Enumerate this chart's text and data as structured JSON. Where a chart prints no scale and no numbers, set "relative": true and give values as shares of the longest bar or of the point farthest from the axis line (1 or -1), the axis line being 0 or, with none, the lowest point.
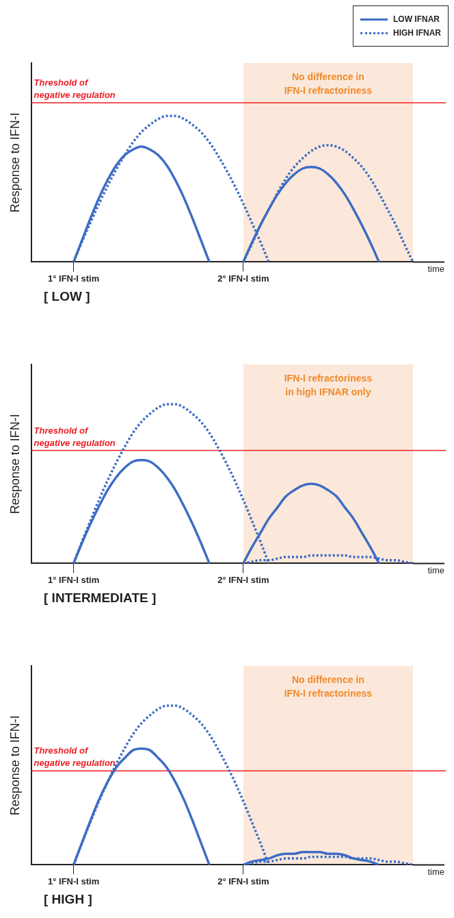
{
  "chart_data": [
    {
      "type": "line",
      "relative": true,
      "ylabel": "Response to IFN-I",
      "xlabel": "time",
      "legend": "top right",
      "categories": [
        null,
        null,
        null,
        null,
        null,
        "1° IFN-I stim",
        null,
        null,
        null,
        null,
        null,
        null,
        null,
        null,
        null,
        null,
        null,
        null,
        null,
        null,
        null,
        null,
        null,
        null,
        null,
        "2° IFN-I stim",
        null,
        null,
        null,
        null,
        null,
        null,
        null,
        null,
        null,
        null,
        null,
        null,
        null,
        null,
        null,
        null,
        null,
        null,
        null,
        null
      ],
      "series": [
        {
          "name": "LOW IFNAR",
          "color": "#3d6cc4",
          "line_style": "solid",
          "values": [
            null,
            null,
            null,
            null,
            null,
            0,
            0.15,
            0.3,
            0.44,
            0.56,
            0.66,
            0.73,
            0.77,
            0.79,
            0.77,
            0.73,
            0.66,
            0.56,
            0.44,
            0.3,
            0.15,
            0,
            null,
            null,
            null,
            null,
            null,
            null,
            null,
            null,
            null,
            null,
            null,
            null,
            null,
            null,
            null,
            null,
            null,
            null,
            null,
            null,
            null,
            null,
            null,
            null
          ]
        },
        {
          "name": "HIGH IFNAR",
          "color": "#3d6cc4",
          "line_style": "dotted",
          "values": [
            null,
            null,
            null,
            null,
            null,
            0,
            0.14,
            0.27,
            0.4,
            0.52,
            0.63,
            0.73,
            0.82,
            0.89,
            0.94,
            0.98,
            1,
            1,
            0.98,
            0.94,
            0.89,
            0.82,
            0.73,
            0.63,
            0.52,
            0.4,
            0.27,
            0.14,
            0,
            null,
            null,
            null,
            null,
            null,
            null,
            null,
            null,
            null,
            null,
            null,
            null,
            null,
            null,
            null,
            null,
            null
          ]
        },
        {
          "color": "#3d6cc4",
          "line_style": "solid",
          "values": [
            null,
            null,
            null,
            null,
            null,
            null,
            null,
            null,
            null,
            null,
            null,
            null,
            null,
            null,
            null,
            null,
            null,
            null,
            null,
            null,
            null,
            null,
            null,
            null,
            null,
            0,
            0.13,
            0.25,
            0.36,
            0.46,
            0.54,
            0.6,
            0.64,
            0.65,
            0.64,
            0.6,
            0.54,
            0.46,
            0.36,
            0.25,
            0.13,
            0,
            null,
            null,
            null,
            null
          ]
        },
        {
          "color": "#3d6cc4",
          "line_style": "dotted",
          "values": [
            null,
            null,
            null,
            null,
            null,
            null,
            null,
            null,
            null,
            null,
            null,
            null,
            null,
            null,
            null,
            null,
            null,
            null,
            null,
            null,
            null,
            null,
            null,
            null,
            null,
            0,
            0.12,
            0.25,
            0.36,
            0.47,
            0.57,
            0.65,
            0.71,
            0.76,
            0.79,
            0.8,
            0.79,
            0.76,
            0.71,
            0.65,
            0.57,
            0.47,
            0.36,
            0.25,
            0.12,
            0
          ]
        }
      ],
      "ref_lines": [
        {
          "axis": "y",
          "value": 1.09,
          "label": "Threshold of\nnegative regulation",
          "color": "#ee1c25"
        }
      ],
      "annotations": [
        "[ LOW ]",
        "No difference in\nIFN-I refractoriness"
      ]
    },
    {
      "type": "line",
      "relative": true,
      "ylabel": "Response to IFN-I",
      "xlabel": "time",
      "categories": [
        null,
        null,
        null,
        null,
        null,
        "1° IFN-I stim",
        null,
        null,
        null,
        null,
        null,
        null,
        null,
        null,
        null,
        null,
        null,
        null,
        null,
        null,
        null,
        null,
        null,
        null,
        null,
        "2° IFN-I stim",
        null,
        null,
        null,
        null,
        null,
        null,
        null,
        null,
        null,
        null,
        null,
        null,
        null,
        null,
        null,
        null,
        null,
        null,
        null,
        null
      ],
      "series": [
        {
          "color": "#3d6cc4",
          "line_style": "solid",
          "values": [
            null,
            null,
            null,
            null,
            null,
            0,
            0.13,
            0.25,
            0.36,
            0.46,
            0.54,
            0.6,
            0.64,
            0.65,
            0.64,
            0.6,
            0.54,
            0.46,
            0.36,
            0.25,
            0.13,
            0,
            null,
            null,
            null,
            null,
            null,
            null,
            null,
            null,
            null,
            null,
            null,
            null,
            null,
            null,
            null,
            null,
            null,
            null,
            null,
            null,
            null,
            null,
            null,
            null
          ]
        },
        {
          "color": "#3d6cc4",
          "line_style": "dotted",
          "values": [
            null,
            null,
            null,
            null,
            null,
            0,
            0.14,
            0.27,
            0.4,
            0.52,
            0.63,
            0.73,
            0.82,
            0.89,
            0.94,
            0.98,
            1,
            1,
            0.98,
            0.94,
            0.89,
            0.82,
            0.73,
            0.63,
            0.52,
            0.4,
            0.27,
            0.14,
            0,
            null,
            null,
            null,
            null,
            null,
            null,
            null,
            null,
            null,
            null,
            null,
            null,
            null,
            null,
            null,
            null,
            null
          ]
        },
        {
          "color": "#3d6cc4",
          "line_style": "solid",
          "values": [
            null,
            null,
            null,
            null,
            null,
            null,
            null,
            null,
            null,
            null,
            null,
            null,
            null,
            null,
            null,
            null,
            null,
            null,
            null,
            null,
            null,
            null,
            null,
            null,
            null,
            0,
            0.1,
            0.19,
            0.28,
            0.35,
            0.42,
            0.46,
            0.49,
            0.5,
            0.49,
            0.46,
            0.42,
            0.35,
            0.28,
            0.19,
            0.1,
            0,
            null,
            null,
            null,
            null
          ]
        },
        {
          "color": "#3d6cc4",
          "line_style": "dotted",
          "values": [
            null,
            null,
            null,
            null,
            null,
            null,
            null,
            null,
            null,
            null,
            null,
            null,
            null,
            null,
            null,
            null,
            null,
            null,
            null,
            null,
            null,
            null,
            null,
            null,
            null,
            0,
            0.01,
            0.02,
            0.02,
            0.03,
            0.04,
            0.04,
            0.04,
            0.05,
            0.05,
            0.05,
            0.05,
            0.05,
            0.04,
            0.04,
            0.04,
            0.03,
            0.02,
            0.02,
            0.01,
            0
          ]
        }
      ],
      "ref_lines": [
        {
          "axis": "y",
          "value": 0.71,
          "label": "Threshold of\nnegative regulation",
          "color": "#ee1c25"
        }
      ],
      "annotations": [
        "[ INTERMEDIATE ]",
        "IFN-I refractoriness\nin high IFNAR only"
      ]
    },
    {
      "type": "line",
      "relative": true,
      "ylabel": "Response to IFN-I",
      "xlabel": "time",
      "categories": [
        null,
        null,
        null,
        null,
        null,
        "1° IFN-I stim",
        null,
        null,
        null,
        null,
        null,
        null,
        null,
        null,
        null,
        null,
        null,
        null,
        null,
        null,
        null,
        null,
        null,
        null,
        null,
        "2° IFN-I stim",
        null,
        null,
        null,
        null,
        null,
        null,
        null,
        null,
        null,
        null,
        null,
        null,
        null,
        null,
        null,
        null,
        null,
        null,
        null,
        null
      ],
      "series": [
        {
          "color": "#3d6cc4",
          "line_style": "solid",
          "values": [
            null,
            null,
            null,
            null,
            null,
            0,
            0.14,
            0.28,
            0.41,
            0.52,
            0.61,
            0.67,
            0.72,
            0.73,
            0.72,
            0.67,
            0.61,
            0.52,
            0.41,
            0.28,
            0.14,
            0,
            null,
            null,
            null,
            null,
            null,
            null,
            null,
            null,
            null,
            null,
            null,
            null,
            null,
            null,
            null,
            null,
            null,
            null,
            null,
            null,
            null,
            null,
            null,
            null
          ]
        },
        {
          "color": "#3d6cc4",
          "line_style": "dotted",
          "values": [
            null,
            null,
            null,
            null,
            null,
            0,
            0.14,
            0.27,
            0.4,
            0.52,
            0.63,
            0.73,
            0.82,
            0.89,
            0.94,
            0.98,
            1,
            1,
            0.98,
            0.94,
            0.89,
            0.82,
            0.73,
            0.63,
            0.52,
            0.4,
            0.27,
            0.14,
            0,
            null,
            null,
            null,
            null,
            null,
            null,
            null,
            null,
            null,
            null,
            null,
            null,
            null,
            null,
            null,
            null,
            null
          ]
        },
        {
          "color": "#3d6cc4",
          "line_style": "solid",
          "values": [
            null,
            null,
            null,
            null,
            null,
            null,
            null,
            null,
            null,
            null,
            null,
            null,
            null,
            null,
            null,
            null,
            null,
            null,
            null,
            null,
            null,
            null,
            null,
            null,
            null,
            0,
            0.02,
            0.03,
            0.04,
            0.06,
            0.07,
            0.07,
            0.08,
            0.08,
            0.08,
            0.07,
            0.07,
            0.06,
            0.04,
            0.03,
            0.02,
            0,
            null,
            null,
            null,
            null
          ]
        },
        {
          "color": "#3d6cc4",
          "line_style": "dotted",
          "values": [
            null,
            null,
            null,
            null,
            null,
            null,
            null,
            null,
            null,
            null,
            null,
            null,
            null,
            null,
            null,
            null,
            null,
            null,
            null,
            null,
            null,
            null,
            null,
            null,
            null,
            0,
            0.01,
            0.02,
            0.02,
            0.03,
            0.04,
            0.04,
            0.04,
            0.05,
            0.05,
            0.05,
            0.05,
            0.05,
            0.04,
            0.04,
            0.04,
            0.03,
            0.02,
            0.02,
            0.01,
            0
          ]
        }
      ],
      "ref_lines": [
        {
          "axis": "y",
          "value": 0.59,
          "label": "Threshold of\nnegative regulation",
          "color": "#ee1c25"
        }
      ],
      "annotations": [
        "[ HIGH ]",
        "No difference in\nIFN-I refractoriness"
      ]
    }
  ]
}
